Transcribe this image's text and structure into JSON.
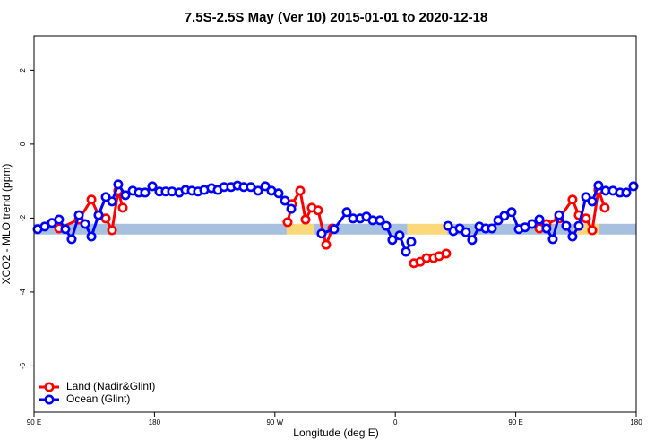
{
  "chart_data": {
    "type": "line",
    "title": "7.5S-2.5S May (Ver 10)   2015-01-01 to 2020-12-18",
    "xlabel": "Longitude (deg E)",
    "ylabel": "XCO2 - MLO trend (ppm)",
    "xlim": [
      90,
      540
    ],
    "ylim": [
      -7.25,
      2.93
    ],
    "xticks": [
      {
        "value": 90,
        "label": "90 E"
      },
      180,
      {
        "value": 270,
        "label": "90 W"
      },
      {
        "value": 360,
        "label": "0"
      },
      {
        "value": 450,
        "label": "90 E"
      },
      {
        "value": 540,
        "label": "180"
      }
    ],
    "yticks": [
      2,
      0,
      -2,
      -4,
      -6
    ],
    "legend": "bottom-left",
    "band": {
      "value": -2.3,
      "segments": [
        {
          "x": [
            90,
            278.8
          ],
          "color": "#a8c0df"
        },
        {
          "x": [
            278.8,
            299
          ],
          "color": "#fbd97a"
        },
        {
          "x": [
            299,
            369
          ],
          "color": "#a8c0df"
        },
        {
          "x": [
            369,
            399
          ],
          "color": "#fbd97a"
        },
        {
          "x": [
            399,
            493
          ],
          "color": "#a8c0df"
        },
        {
          "x": [
            493,
            512
          ],
          "color": "#fbd97a"
        },
        {
          "x": [
            512,
            540
          ],
          "color": "#a8c0df"
        }
      ]
    },
    "series": [
      {
        "name": "Land (Nadir&Glint)",
        "color": "#ff0000",
        "x": [
          108.7,
          123.5,
          132.9,
          138.2,
          143.6,
          148.3,
          152.9,
          156.3,
          null,
          279.5,
          282.8,
          288.9,
          292.9,
          297.6,
          302.3,
          308.3,
          313.0,
          null,
          373.9,
          378.6,
          383.3,
          388.6,
          392.7,
          398.0,
          null,
          467.7,
          473.0,
          482.4,
          492.4,
          497.1,
          502.5,
          507.2,
          511.8,
          516.5
        ],
        "values": [
          -2.28,
          -2.04,
          -1.5,
          -1.92,
          -2.01,
          -2.33,
          -1.26,
          -1.72,
          null,
          -2.11,
          -1.62,
          -1.26,
          -2.04,
          -1.72,
          -1.79,
          -2.72,
          -2.28,
          null,
          -3.22,
          -3.18,
          -3.08,
          -3.08,
          -3.03,
          -2.96,
          null,
          -2.28,
          -2.16,
          -2.01,
          -1.5,
          -1.92,
          -2.01,
          -2.33,
          -1.24,
          -1.72
        ]
      },
      {
        "name": "Ocean (Glint)",
        "color": "#0000ff",
        "x": [
          92.7,
          98.0,
          103.4,
          108.7,
          113.4,
          118.1,
          123.5,
          128.2,
          132.9,
          138.2,
          143.6,
          148.3,
          152.9,
          158.3,
          163.7,
          168.3,
          173.0,
          178.4,
          183.7,
          188.4,
          193.1,
          198.5,
          203.2,
          207.9,
          212.5,
          217.2,
          222.6,
          227.3,
          232.0,
          237.3,
          242.0,
          246.7,
          252.0,
          257.4,
          262.8,
          267.4,
          272.8,
          277.5,
          282.2,
          null,
          304.9,
          314.3,
          323.7,
          328.4,
          333.7,
          338.4,
          343.1,
          348.5,
          353.2,
          357.8,
          363.2,
          367.9,
          371.9,
          null,
          399.4,
          403.4,
          408.1,
          412.7,
          417.4,
          422.8,
          427.5,
          432.2,
          436.9,
          441.5,
          446.9,
          452.3,
          456.9,
          462.3,
          467.7,
          473.0,
          477.7,
          482.4,
          487.7,
          492.4,
          497.1,
          502.5,
          507.2,
          511.8,
          517.2,
          522.6,
          527.9,
          532.6,
          538.0
        ],
        "values": [
          -2.3,
          -2.23,
          -2.13,
          -2.04,
          -2.3,
          -2.57,
          -1.92,
          -2.16,
          -2.5,
          -1.92,
          -1.43,
          -1.55,
          -1.09,
          -1.38,
          -1.26,
          -1.31,
          -1.31,
          -1.14,
          -1.28,
          -1.28,
          -1.28,
          -1.31,
          -1.24,
          -1.26,
          -1.28,
          -1.24,
          -1.19,
          -1.24,
          -1.16,
          -1.16,
          -1.12,
          -1.16,
          -1.16,
          -1.26,
          -1.14,
          -1.26,
          -1.33,
          -1.53,
          -1.75,
          null,
          -2.42,
          -2.3,
          -1.84,
          -2.01,
          -2.01,
          -1.96,
          -2.06,
          -2.06,
          -2.21,
          -2.59,
          -2.47,
          -2.91,
          -2.64,
          null,
          -2.21,
          -2.35,
          -2.28,
          -2.38,
          -2.59,
          -2.23,
          -2.28,
          -2.28,
          -2.06,
          -1.94,
          -1.84,
          -2.3,
          -2.25,
          -2.16,
          -2.04,
          -2.28,
          -2.57,
          -1.92,
          -2.21,
          -2.5,
          -2.21,
          -1.43,
          -1.55,
          -1.12,
          -1.26,
          -1.26,
          -1.31,
          -1.31,
          -1.14
        ]
      }
    ]
  }
}
